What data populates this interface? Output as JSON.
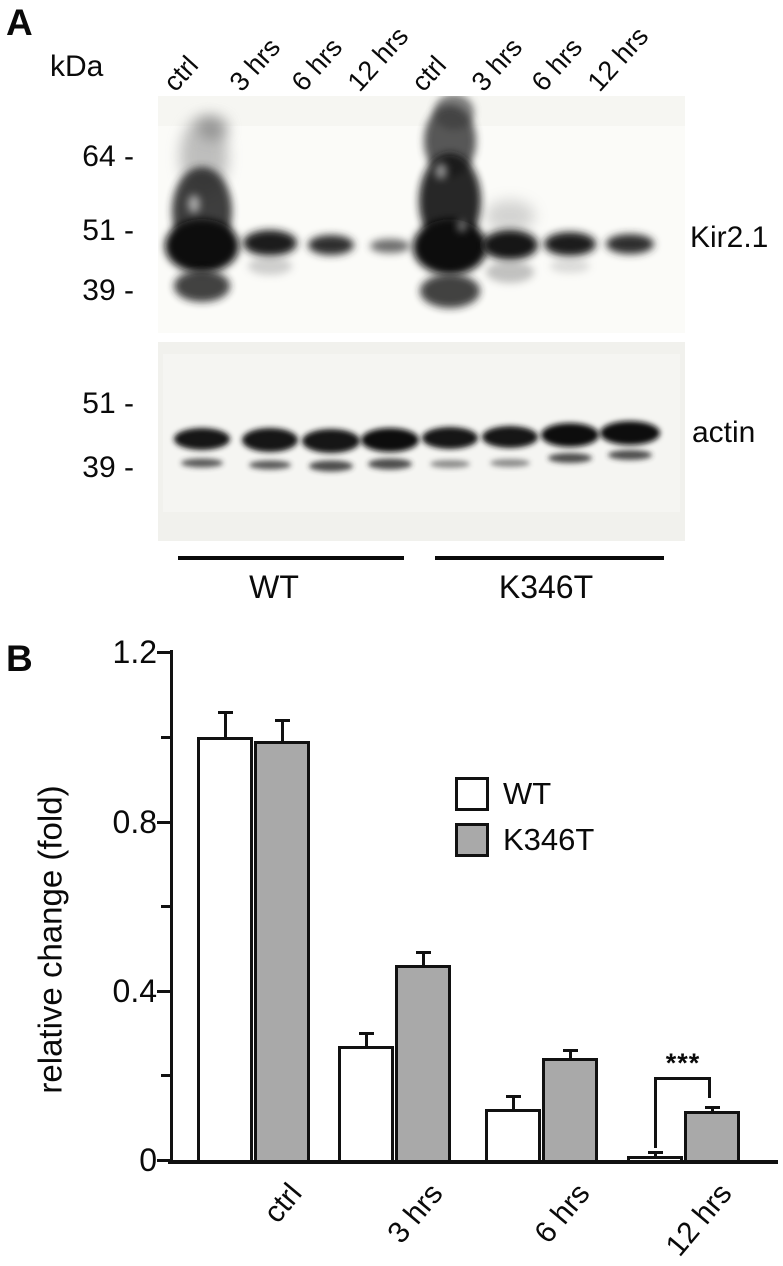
{
  "figure": {
    "panel_a_label": "A",
    "panel_b_label": "B"
  },
  "panel_a": {
    "unit_label": "kDa",
    "lane_labels": [
      "ctrl",
      "3 hrs",
      "6 hrs",
      "12 hrs",
      "ctrl",
      "3 hrs",
      "6 hrs",
      "12 hrs"
    ],
    "blot1": {
      "markers": [
        "64 -",
        "51 -",
        "39 -"
      ],
      "band_label": "Kir2.1"
    },
    "blot2": {
      "markers": [
        "51 -",
        "39 -"
      ],
      "band_label": "actin"
    },
    "group_labels": [
      "WT",
      "K346T"
    ]
  },
  "chart_data": {
    "type": "bar",
    "title": "",
    "xlabel": "",
    "ylabel": "relative change (fold)",
    "categories": [
      "ctrl",
      "3 hrs",
      "6 hrs",
      "12 hrs"
    ],
    "series": [
      {
        "name": "WT",
        "fill": "#ffffff",
        "values": [
          1.0,
          0.27,
          0.12,
          0.01
        ],
        "errors": [
          0.06,
          0.03,
          0.03,
          0.01
        ]
      },
      {
        "name": "K346T",
        "fill": "#a9a9a9",
        "values": [
          0.99,
          0.46,
          0.24,
          0.115
        ],
        "errors": [
          0.05,
          0.03,
          0.02,
          0.01
        ]
      }
    ],
    "ylim": [
      0,
      1.2
    ],
    "yticks": [
      0,
      0.4,
      0.8,
      1.2
    ],
    "minor_yticks": [
      0.2,
      0.6,
      1.0
    ],
    "grid": false,
    "legend_position": "right-upper-middle",
    "annotation": {
      "text": "***",
      "category": "12 hrs",
      "compares": [
        "WT",
        "K346T"
      ]
    }
  }
}
